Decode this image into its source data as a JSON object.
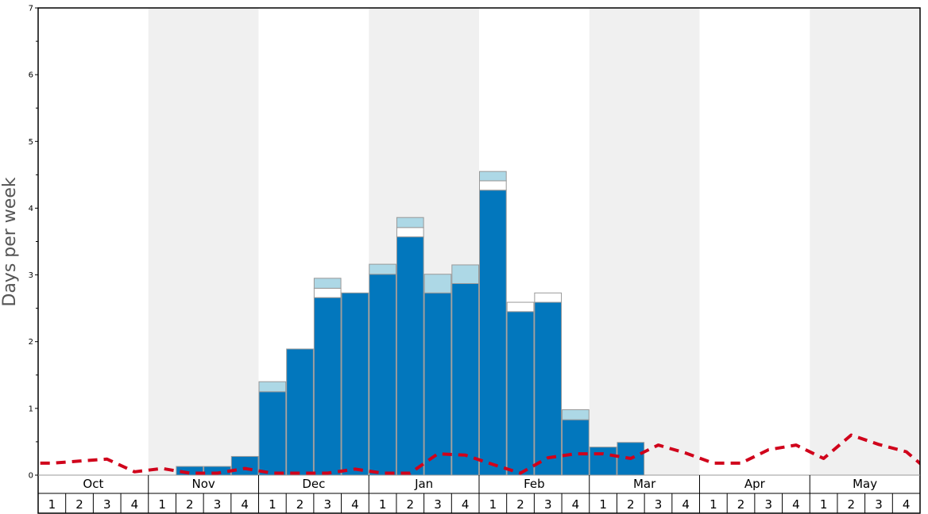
{
  "chart_data": {
    "type": "bar",
    "ylabel": "Days per week",
    "ylim": [
      0,
      7
    ],
    "yticks": [
      "0",
      "1",
      "2",
      "3",
      "4",
      "5",
      "6",
      "7"
    ],
    "months": [
      "Oct",
      "Nov",
      "Dec",
      "Jan",
      "Feb",
      "Mar",
      "Apr",
      "May"
    ],
    "week_labels": [
      "1",
      "2",
      "3",
      "4"
    ],
    "grid": false,
    "legend": "none",
    "colors": {
      "main": "#0277bd",
      "light": "#add8e6",
      "white": "#ffffff",
      "bar_edge": "#999999",
      "dashed_line": "#d0021b",
      "shade": "#f0f0f0"
    },
    "series": [
      {
        "values": [
          0,
          0,
          0,
          0,
          0,
          0.13,
          0.13,
          0.28,
          1.25,
          1.89,
          2.66,
          2.73,
          3.01,
          3.57,
          2.73,
          2.87,
          4.27,
          2.45,
          2.59,
          0.83,
          0.42,
          0.49,
          0,
          0,
          0,
          0,
          0,
          0,
          0,
          0,
          0,
          0
        ]
      },
      {
        "values": [
          0,
          0,
          0,
          0,
          0,
          0,
          0,
          0,
          0,
          0,
          0.14,
          0,
          0,
          0.14,
          0,
          0,
          0.14,
          0.14,
          0.14,
          0,
          0,
          0,
          0,
          0,
          0,
          0,
          0,
          0,
          0,
          0,
          0,
          0
        ]
      },
      {
        "values": [
          0,
          0,
          0,
          0,
          0,
          0,
          0,
          0,
          0.15,
          0,
          0.15,
          0,
          0.15,
          0.15,
          0.28,
          0.28,
          0.14,
          0,
          0,
          0.15,
          0,
          0,
          0,
          0,
          0,
          0,
          0,
          0,
          0,
          0,
          0,
          0
        ]
      },
      {
        "style": "dashed-line",
        "values": [
          0.18,
          0.21,
          0.24,
          0.05,
          0.1,
          0.03,
          0.03,
          0.1,
          0.03,
          0.03,
          0.03,
          0.09,
          0.03,
          0.03,
          0.32,
          0.3,
          0.16,
          0.03,
          0.26,
          0.32,
          0.32,
          0.25,
          0.45,
          0.33,
          0.18,
          0.18,
          0.38,
          0.45,
          0.25,
          0.6,
          0.46,
          0.35
        ]
      }
    ]
  }
}
